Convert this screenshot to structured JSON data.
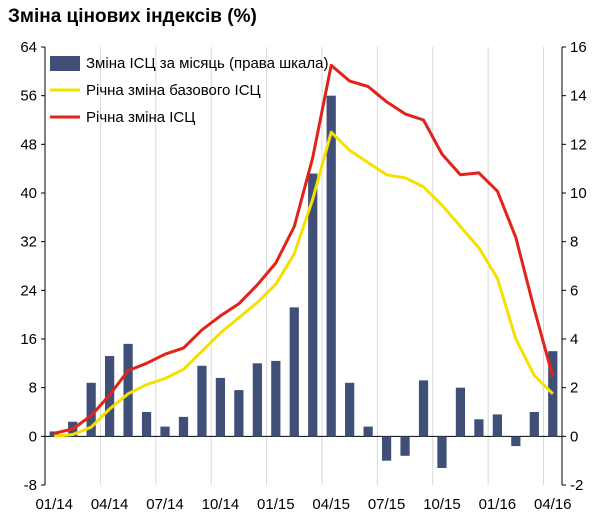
{
  "chart_data": {
    "type": "bar+line",
    "title": "Зміна цінових індексів (%)",
    "x_tick_labels": [
      "01/14",
      "04/14",
      "07/14",
      "10/14",
      "01/15",
      "04/15",
      "07/15",
      "10/15",
      "01/16",
      "04/16"
    ],
    "months": [
      "01/14",
      "02/14",
      "03/14",
      "04/14",
      "05/14",
      "06/14",
      "07/14",
      "08/14",
      "09/14",
      "10/14",
      "11/14",
      "12/14",
      "01/15",
      "02/15",
      "03/15",
      "04/15",
      "05/15",
      "06/15",
      "07/15",
      "08/15",
      "09/15",
      "10/15",
      "11/15",
      "12/15",
      "01/16",
      "02/16",
      "03/16",
      "04/16"
    ],
    "left_axis": {
      "ylim": [
        -8,
        64
      ],
      "ticks": [
        -8,
        0,
        8,
        16,
        24,
        32,
        40,
        48,
        56,
        64
      ]
    },
    "right_axis": {
      "ylim": [
        -2,
        16
      ],
      "ticks": [
        -2,
        0,
        2,
        4,
        6,
        8,
        10,
        12,
        14,
        16
      ]
    },
    "legend": {
      "position": "top-left"
    },
    "series": [
      {
        "name": "Зміна ІСЦ за місяць (права шкала)",
        "type": "bar",
        "axis": "right",
        "color": "#3f4f78",
        "values": [
          0.2,
          0.6,
          2.2,
          3.3,
          3.8,
          1.0,
          0.4,
          0.8,
          2.9,
          2.4,
          1.9,
          3.0,
          3.1,
          5.3,
          10.8,
          14.0,
          2.2,
          0.4,
          -1.0,
          -0.8,
          2.3,
          -1.3,
          2.0,
          0.7,
          0.9,
          -0.4,
          1.0,
          3.5
        ]
      },
      {
        "name": "Річна зміна базового ІСЦ",
        "type": "line",
        "axis": "left",
        "color": "#f5e000",
        "values": [
          0.0,
          0.3,
          1.5,
          4.5,
          7.0,
          8.5,
          9.5,
          11.0,
          14.0,
          17.0,
          19.5,
          22.0,
          25.0,
          30.0,
          39.0,
          50.0,
          47.0,
          45.0,
          43.0,
          42.5,
          41.0,
          38.0,
          34.5,
          31.0,
          26.0,
          16.0,
          10.0,
          7.0
        ]
      },
      {
        "name": "Річна зміна ІСЦ",
        "type": "line",
        "axis": "left",
        "color": "#e2231a",
        "values": [
          0.5,
          1.2,
          3.4,
          6.8,
          10.8,
          12.0,
          13.5,
          14.5,
          17.5,
          19.8,
          21.8,
          24.9,
          28.5,
          34.5,
          45.8,
          61.0,
          58.4,
          57.5,
          55.0,
          53.0,
          52.0,
          46.4,
          43.0,
          43.3,
          40.3,
          32.7,
          20.9,
          9.8
        ]
      }
    ]
  }
}
